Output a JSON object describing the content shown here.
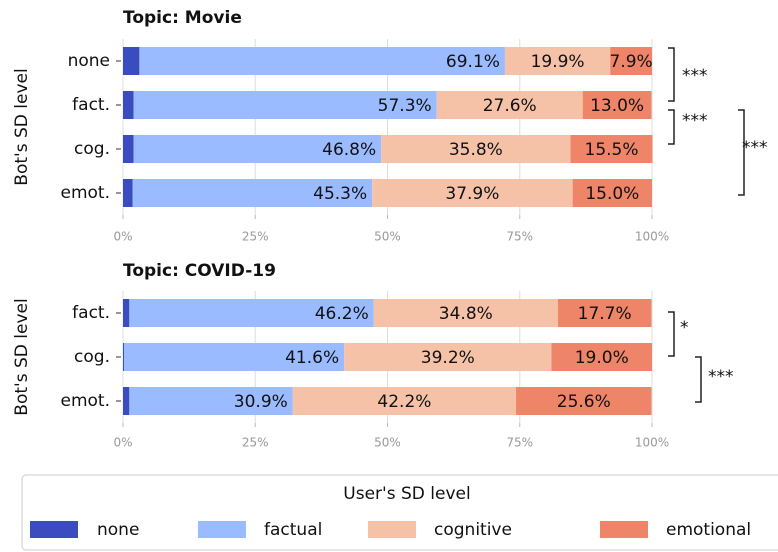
{
  "chart_data": [
    {
      "type": "bar",
      "orientation": "horizontal",
      "stacked": true,
      "title": "Topic: Movie",
      "ylabel": "Bot's SD level",
      "categories": [
        "none",
        "fact.",
        "cog.",
        "emot."
      ],
      "series": [
        {
          "name": "none",
          "color": "#3b4cc0",
          "values": [
            3.1,
            2.0,
            2.0,
            1.8
          ],
          "value_labels": [
            "3.1%",
            "2.0%",
            "2.0%",
            "1.8%"
          ]
        },
        {
          "name": "factual",
          "color": "#9abbff",
          "values": [
            69.1,
            57.3,
            46.8,
            45.3
          ],
          "value_labels": [
            "69.1%",
            "57.3%",
            "46.8%",
            "45.3%"
          ]
        },
        {
          "name": "cognitive",
          "color": "#f5c2a8",
          "values": [
            19.9,
            27.6,
            35.8,
            37.9
          ],
          "value_labels": [
            "19.9%",
            "27.6%",
            "35.8%",
            "37.9%"
          ]
        },
        {
          "name": "emotional",
          "color": "#ee8468",
          "values": [
            7.9,
            13.0,
            15.5,
            15.0
          ],
          "value_labels": [
            "7.9%",
            "13.0%",
            "15.5%",
            "15.0%"
          ]
        }
      ],
      "xlim": [
        0,
        100
      ],
      "xticks": [
        {
          "value": 0,
          "label": "0%"
        },
        {
          "value": 25,
          "label": "25%"
        },
        {
          "value": 50,
          "label": "50%"
        },
        {
          "value": 75,
          "label": "75%"
        },
        {
          "value": 100,
          "label": "100%"
        }
      ],
      "grid": true,
      "annotations": [
        "***",
        "***",
        "***"
      ],
      "legend_title": "User's SD level"
    },
    {
      "type": "bar",
      "orientation": "horizontal",
      "stacked": true,
      "title": "Topic: COVID-19",
      "ylabel": "Bot's SD level",
      "categories": [
        "fact.",
        "cog.",
        "emot."
      ],
      "series": [
        {
          "name": "none",
          "color": "#3b4cc0",
          "values": [
            1.2,
            0.2,
            1.2
          ],
          "value_labels": [
            "1.2%",
            "0.2%",
            "1.2%"
          ]
        },
        {
          "name": "factual",
          "color": "#9abbff",
          "values": [
            46.2,
            41.6,
            30.9
          ],
          "value_labels": [
            "46.2%",
            "41.6%",
            "30.9%"
          ]
        },
        {
          "name": "cognitive",
          "color": "#f5c2a8",
          "values": [
            34.8,
            39.2,
            42.2
          ],
          "value_labels": [
            "34.8%",
            "39.2%",
            "42.2%"
          ]
        },
        {
          "name": "emotional",
          "color": "#ee8468",
          "values": [
            17.7,
            19.0,
            25.6
          ],
          "value_labels": [
            "17.7%",
            "19.0%",
            "25.6%"
          ]
        }
      ],
      "xlim": [
        0,
        100
      ],
      "xticks": [
        {
          "value": 0,
          "label": "0%"
        },
        {
          "value": 25,
          "label": "25%"
        },
        {
          "value": 50,
          "label": "50%"
        },
        {
          "value": 75,
          "label": "75%"
        },
        {
          "value": 100,
          "label": "100%"
        }
      ],
      "grid": true,
      "annotations": [
        "*",
        "***"
      ]
    }
  ]
}
